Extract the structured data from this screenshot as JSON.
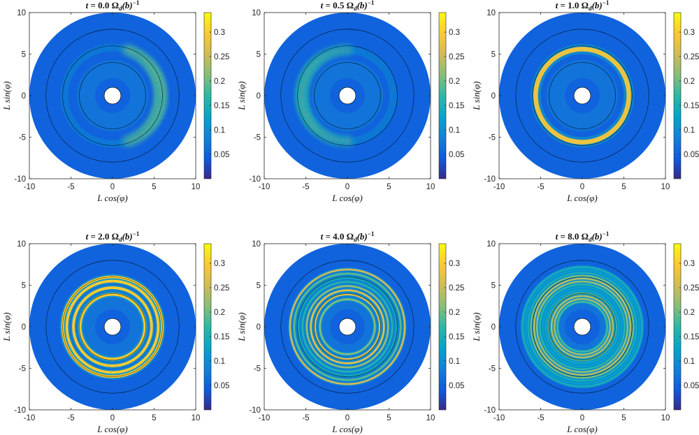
{
  "figure": {
    "colormap": "parula",
    "colormap_stops": [
      "#352a87",
      "#0f5cdd",
      "#1481d6",
      "#06a4ca",
      "#2eb7a4",
      "#87bf77",
      "#d1bb59",
      "#fec832",
      "#f9fb0e"
    ]
  },
  "chart_data": [
    {
      "type": "heatmap",
      "title": "t = 0.0 Ω_d(b)^{-1}",
      "title_parts": {
        "t": "t",
        "eq": " = ",
        "time": "0.0",
        "omega": " Ω",
        "sub": "d",
        "paren": "(b)",
        "sup": "−1"
      },
      "time": 0.0,
      "xlabel": "L cos(φ)",
      "ylabel": "L sin(φ)",
      "xlim": [
        -10,
        10
      ],
      "ylim": [
        -10,
        10
      ],
      "xticks": [
        "-10",
        "-5",
        "0",
        "5",
        "10"
      ],
      "yticks": [
        "-10",
        "-5",
        "0",
        "5",
        "10"
      ],
      "colorbar": {
        "range": [
          0,
          0.34
        ],
        "ticks": [
          "0.05",
          "0.1",
          "0.15",
          "0.2",
          "0.25",
          "0.3"
        ],
        "tick_values": [
          0.05,
          0.1,
          0.15,
          0.2,
          0.25,
          0.3
        ]
      },
      "domain": {
        "inner_radius": 1,
        "outer_radius": 10
      },
      "contour_radii": [
        1,
        4,
        6,
        8
      ],
      "features": [
        {
          "kind": "crescent",
          "radius": 5.8,
          "angle_deg": 0,
          "peak": 0.31,
          "spread_deg": 75
        }
      ]
    },
    {
      "type": "heatmap",
      "title": "t = 0.5 Ω_d(b)^{-1}",
      "title_parts": {
        "t": "t",
        "eq": " = ",
        "time": "0.5",
        "omega": " Ω",
        "sub": "d",
        "paren": "(b)",
        "sup": "−1"
      },
      "time": 0.5,
      "xlabel": "L cos(φ)",
      "ylabel": "L sin(φ)",
      "xlim": [
        -10,
        10
      ],
      "ylim": [
        -10,
        10
      ],
      "xticks": [
        "-10",
        "-5",
        "0",
        "5",
        "10"
      ],
      "yticks": [
        "-10",
        "-5",
        "0",
        "5",
        "10"
      ],
      "colorbar": {
        "range": [
          0,
          0.34
        ],
        "ticks": [
          "0.05",
          "0.1",
          "0.15",
          "0.2",
          "0.25",
          "0.3"
        ],
        "tick_values": [
          0.05,
          0.1,
          0.15,
          0.2,
          0.25,
          0.3
        ]
      },
      "domain": {
        "inner_radius": 1,
        "outer_radius": 10
      },
      "contour_radii": [
        1,
        4,
        6,
        8
      ],
      "features": [
        {
          "kind": "crescent",
          "radius": 5.5,
          "angle_deg": 180,
          "peak": 0.27,
          "spread_deg": 95
        }
      ]
    },
    {
      "type": "heatmap",
      "title": "t = 1.0 Ω_d(b)^{-1}",
      "title_parts": {
        "t": "t",
        "eq": " = ",
        "time": "1.0",
        "omega": " Ω",
        "sub": "d",
        "paren": "(b)",
        "sup": "−1"
      },
      "time": 1.0,
      "xlabel": "L cos(φ)",
      "ylabel": "L sin(φ)",
      "xlim": [
        -10,
        10
      ],
      "ylim": [
        -10,
        10
      ],
      "xticks": [
        "-10",
        "-5",
        "0",
        "5",
        "10"
      ],
      "yticks": [
        "-10",
        "-5",
        "0",
        "5",
        "10"
      ],
      "colorbar": {
        "range": [
          0,
          0.34
        ],
        "ticks": [
          "0.05",
          "0.1",
          "0.15",
          "0.2",
          "0.25",
          "0.3"
        ],
        "tick_values": [
          0.05,
          0.1,
          0.15,
          0.2,
          0.25,
          0.3
        ]
      },
      "domain": {
        "inner_radius": 1,
        "outer_radius": 10
      },
      "contour_radii": [
        1,
        4,
        6,
        8
      ],
      "features": [
        {
          "kind": "rings",
          "radii": [
            5.6
          ],
          "peak": 0.28
        }
      ]
    },
    {
      "type": "heatmap",
      "title": "t = 2.0 Ω_d(b)^{-1}",
      "title_parts": {
        "t": "t",
        "eq": " = ",
        "time": "2.0",
        "omega": " Ω",
        "sub": "d",
        "paren": "(b)",
        "sup": "−1"
      },
      "time": 2.0,
      "xlabel": "L cos(φ)",
      "ylabel": "L sin(φ)",
      "xlim": [
        -10,
        10
      ],
      "ylim": [
        -10,
        10
      ],
      "xticks": [
        "-10",
        "-5",
        "0",
        "5",
        "10"
      ],
      "yticks": [
        "-10",
        "-5",
        "0",
        "5",
        "10"
      ],
      "colorbar": {
        "range": [
          0,
          0.34
        ],
        "ticks": [
          "0.05",
          "0.1",
          "0.15",
          "0.2",
          "0.25",
          "0.3"
        ],
        "tick_values": [
          0.05,
          0.1,
          0.15,
          0.2,
          0.25,
          0.3
        ]
      },
      "domain": {
        "inner_radius": 1,
        "outer_radius": 10
      },
      "contour_radii": [
        1,
        4,
        6,
        8
      ],
      "features": [
        {
          "kind": "rings",
          "radii": [
            3.9,
            4.7,
            5.5,
            6.0
          ],
          "peak": 0.3
        }
      ]
    },
    {
      "type": "heatmap",
      "title": "t = 4.0 Ω_d(b)^{-1}",
      "title_parts": {
        "t": "t",
        "eq": " = ",
        "time": "4.0",
        "omega": " Ω",
        "sub": "d",
        "paren": "(b)",
        "sup": "−1"
      },
      "time": 4.0,
      "xlabel": "L cos(φ)",
      "ylabel": "L sin(φ)",
      "xlim": [
        -10,
        10
      ],
      "ylim": [
        -10,
        10
      ],
      "xticks": [
        "-10",
        "-5",
        "0",
        "5",
        "10"
      ],
      "yticks": [
        "-10",
        "-5",
        "0",
        "5",
        "10"
      ],
      "colorbar": {
        "range": [
          0,
          0.34
        ],
        "ticks": [
          "0.05",
          "0.1",
          "0.15",
          "0.2",
          "0.25",
          "0.3"
        ],
        "tick_values": [
          0.05,
          0.1,
          0.15,
          0.2,
          0.25,
          0.3
        ]
      },
      "domain": {
        "inner_radius": 1,
        "outer_radius": 10
      },
      "contour_radii": [
        1,
        4,
        6,
        8
      ],
      "features": [
        {
          "kind": "rings",
          "radii": [
            3.3,
            3.9,
            4.4,
            4.9,
            5.4,
            5.9,
            6.4,
            6.9
          ],
          "peak": 0.28
        }
      ]
    },
    {
      "type": "heatmap",
      "title": "t = 8.0 Ω_d(b)^{-1}",
      "title_parts": {
        "t": "t",
        "eq": " = ",
        "time": "8.0",
        "omega": " Ω",
        "sub": "d",
        "paren": "(b)",
        "sup": "−1"
      },
      "time": 8.0,
      "xlabel": "L cos(φ)",
      "ylabel": "L sin(φ)",
      "xlim": [
        -10,
        10
      ],
      "ylim": [
        -10,
        10
      ],
      "xticks": [
        "-10",
        "-5",
        "0",
        "5",
        "10"
      ],
      "yticks": [
        "-10",
        "-5",
        "0",
        "5",
        "10"
      ],
      "colorbar": {
        "range": [
          0,
          0.34
        ],
        "ticks": [
          "0.05",
          "0.1",
          "0.15",
          "0.2",
          "0.25",
          "0.3"
        ],
        "tick_values": [
          0.05,
          0.1,
          0.15,
          0.2,
          0.25,
          0.3
        ]
      },
      "domain": {
        "inner_radius": 1,
        "outer_radius": 10
      },
      "contour_radii": [
        1,
        4,
        6,
        8
      ],
      "features": [
        {
          "kind": "rings",
          "radii": [
            3.0,
            3.35,
            3.7,
            4.05,
            4.4,
            4.75,
            5.1,
            5.45,
            5.8,
            6.15,
            6.5,
            6.85,
            7.2
          ],
          "peak": 0.24
        }
      ]
    }
  ]
}
